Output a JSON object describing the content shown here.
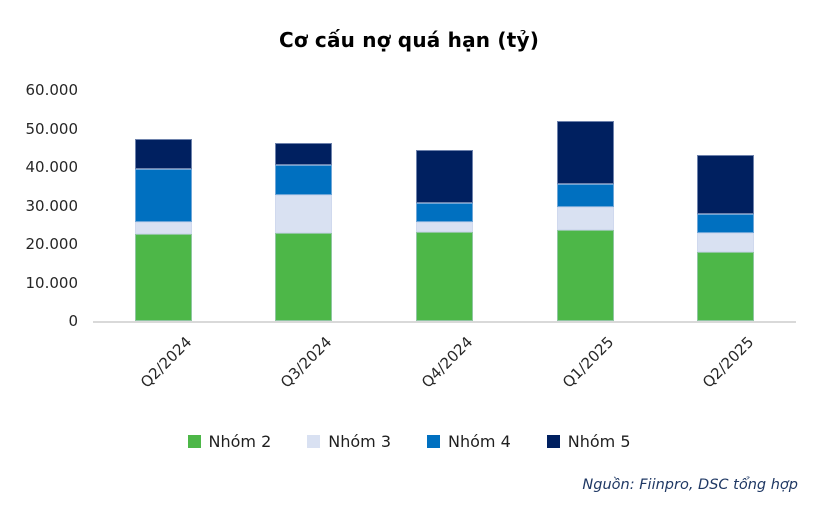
{
  "source": "Nguồn: Fiinpro, DSC tổng hợp",
  "colors": {
    "nhom2_green": "#4DB748",
    "nhom3_lavender": "#D9E1F2",
    "nhom4_blue": "#0070C0",
    "nhom5_navy": "#002060",
    "axis_line": "#D9D9D9",
    "tick_text": "#262626",
    "legend_text": "#1F1F1F",
    "source_text": "#1F3864",
    "title_text": "#000000"
  },
  "chart_data": {
    "type": "bar",
    "stacked": true,
    "title": "Cơ cấu nợ quá hạn (tỷ)",
    "categories": [
      "Q2/2024",
      "Q3/2024",
      "Q4/2024",
      "Q1/2025",
      "Q2/2025"
    ],
    "series": [
      {
        "name": "Nhóm 2",
        "color": "#4DB748",
        "values": [
          22500,
          22800,
          23000,
          23600,
          18000
        ]
      },
      {
        "name": "Nhóm 3",
        "color": "#D9E1F2",
        "values": [
          3300,
          10000,
          2600,
          6100,
          4900
        ]
      },
      {
        "name": "Nhóm 4",
        "color": "#0070C0",
        "values": [
          13800,
          7600,
          5100,
          5800,
          5000
        ]
      },
      {
        "name": "Nhóm 5",
        "color": "#002060",
        "values": [
          7600,
          5800,
          13600,
          16400,
          15300
        ]
      }
    ],
    "totals": [
      47200,
      46200,
      44300,
      51900,
      43200
    ],
    "xlabel": "",
    "ylabel": "",
    "ylim": [
      0,
      60000
    ],
    "ytick_step": 10000,
    "ytick_labels": [
      "0",
      "10.000",
      "20.000",
      "30.000",
      "40.000",
      "50.000",
      "60.000"
    ],
    "grid": false,
    "legend_position": "bottom",
    "x_label_rotation_deg": -45
  }
}
